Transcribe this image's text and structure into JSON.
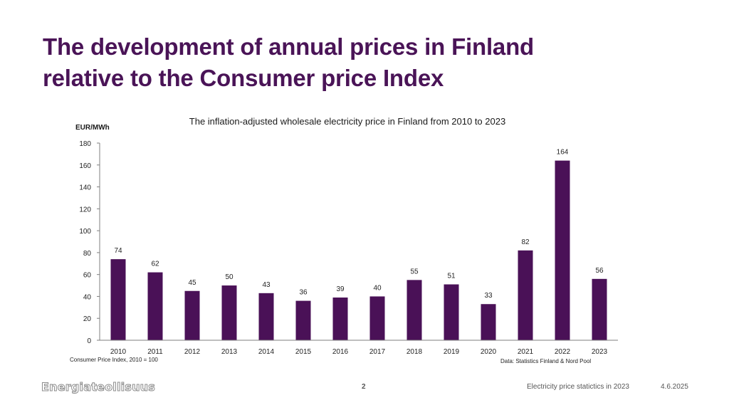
{
  "slide": {
    "title_lines": [
      "The development of annual prices in Finland",
      "relative to the Consumer price Index"
    ],
    "footer": {
      "logo": "Energiateollisuus",
      "page_number": "2",
      "text": "Electricity price statictics in 2023",
      "date": "4.6.2025"
    }
  },
  "colors": {
    "title": "#4a1457",
    "bar": "#4a1157",
    "axis": "#7f7f7f"
  },
  "chart_data": {
    "type": "bar",
    "title": "The inflation-adjusted wholesale electricity price in Finland from 2010 to 2023",
    "xlabel": "",
    "ylabel": "EUR/MWh",
    "categories": [
      "2010",
      "2011",
      "2012",
      "2013",
      "2014",
      "2015",
      "2016",
      "2017",
      "2018",
      "2019",
      "2020",
      "2021",
      "2022",
      "2023"
    ],
    "values": [
      74,
      62,
      45,
      50,
      43,
      36,
      39,
      40,
      55,
      51,
      33,
      82,
      164,
      56
    ],
    "data_labels": [
      "74",
      "62",
      "45",
      "50",
      "43",
      "36",
      "39",
      "40",
      "55",
      "51",
      "33",
      "82",
      "164",
      "56"
    ],
    "ylim": [
      0,
      180
    ],
    "yticks": [
      0,
      20,
      40,
      60,
      80,
      100,
      120,
      140,
      160,
      180
    ],
    "grid": false,
    "legend": "none",
    "annotations": {
      "bottom_left": "Consumer Price Index, 2010 = 100",
      "bottom_right": "Data: Statistics Finland & Nord Pool"
    }
  }
}
